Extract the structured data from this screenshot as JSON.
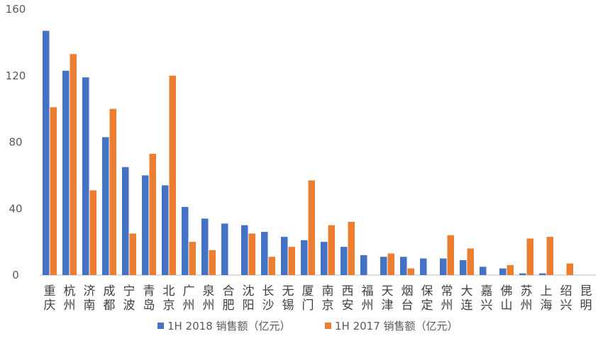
{
  "chart_data": {
    "type": "bar",
    "categories": [
      "重庆",
      "杭州",
      "济南",
      "成都",
      "宁波",
      "青岛",
      "北京",
      "广州",
      "泉州",
      "合肥",
      "沈阳",
      "长沙",
      "无锡",
      "厦门",
      "南京",
      "西安",
      "福州",
      "天津",
      "烟台",
      "保定",
      "常州",
      "大连",
      "嘉兴",
      "佛山",
      "苏州",
      "上海",
      "绍兴",
      "昆明"
    ],
    "series": [
      {
        "name": "1H 2018 销售额（亿元）",
        "color": "#4472C4",
        "values": [
          147,
          123,
          119,
          83,
          65,
          60,
          54,
          41,
          34,
          31,
          30,
          26,
          23,
          21,
          20,
          17,
          12,
          11,
          11,
          10,
          10,
          9,
          5,
          4,
          1,
          1,
          0,
          0
        ]
      },
      {
        "name": "1H 2017 销售额（亿元）",
        "color": "#ED7D31",
        "values": [
          101,
          133,
          51,
          100,
          25,
          73,
          120,
          20,
          15,
          0,
          25,
          11,
          17,
          57,
          30,
          32,
          0,
          13,
          4,
          0,
          24,
          16,
          0,
          6,
          22,
          23,
          7,
          0
        ]
      }
    ],
    "yticks": [
      0,
      40,
      80,
      120,
      160
    ],
    "ylim": [
      0,
      160
    ],
    "grid": false,
    "legend": "bottom"
  }
}
